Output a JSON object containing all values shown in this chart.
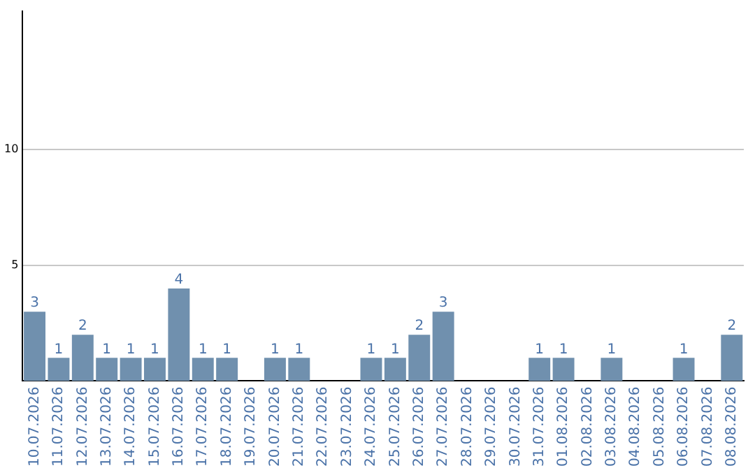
{
  "chart_data": {
    "type": "bar",
    "categories": [
      "10.07.2026",
      "11.07.2026",
      "12.07.2026",
      "13.07.2026",
      "14.07.2026",
      "15.07.2026",
      "16.07.2026",
      "17.07.2026",
      "18.07.2026",
      "19.07.2026",
      "20.07.2026",
      "21.07.2026",
      "22.07.2026",
      "23.07.2026",
      "24.07.2026",
      "25.07.2026",
      "26.07.2026",
      "27.07.2026",
      "28.07.2026",
      "29.07.2026",
      "30.07.2026",
      "31.07.2026",
      "01.08.2026",
      "02.08.2026",
      "03.08.2026",
      "04.08.2026",
      "05.08.2026",
      "06.08.2026",
      "07.08.2026",
      "08.08.2026"
    ],
    "values": [
      3,
      1,
      2,
      1,
      1,
      1,
      4,
      1,
      1,
      null,
      1,
      1,
      null,
      null,
      1,
      1,
      2,
      3,
      null,
      null,
      null,
      1,
      1,
      null,
      1,
      null,
      null,
      1,
      null,
      2
    ],
    "color": "#7090ae",
    "ylim": [
      0,
      16
    ],
    "yticks": [
      5,
      10
    ],
    "grid": "y",
    "data_labels": true,
    "legend": false
  }
}
